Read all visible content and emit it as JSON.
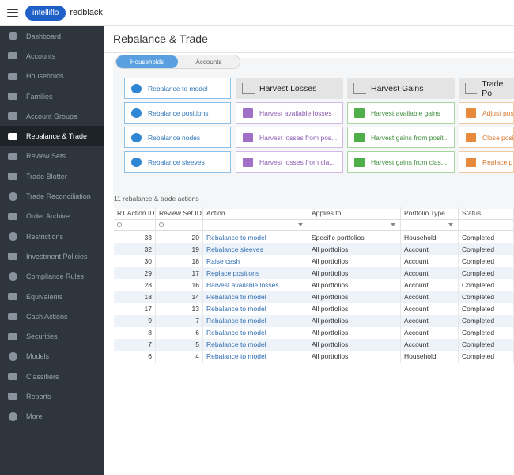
{
  "header": {
    "brand_left": "intelliflo",
    "brand_right": "redblack"
  },
  "sidebar": {
    "items": [
      {
        "label": "Dashboard",
        "icon": "dashboard-icon"
      },
      {
        "label": "Accounts",
        "icon": "accounts-icon"
      },
      {
        "label": "Households",
        "icon": "households-icon"
      },
      {
        "label": "Families",
        "icon": "families-icon"
      },
      {
        "label": "Account Groups",
        "icon": "account-groups-icon"
      },
      {
        "label": "Rebalance & Trade",
        "icon": "calculator-icon"
      },
      {
        "label": "Review Sets",
        "icon": "review-sets-icon"
      },
      {
        "label": "Trade Blotter",
        "icon": "trade-blotter-icon"
      },
      {
        "label": "Trade Reconciliation",
        "icon": "check-circle-icon"
      },
      {
        "label": "Order Archive",
        "icon": "archive-icon"
      },
      {
        "label": "Restrictions",
        "icon": "restriction-icon"
      },
      {
        "label": "Investment Policies",
        "icon": "policy-icon"
      },
      {
        "label": "Compliance Rules",
        "icon": "compliance-icon"
      },
      {
        "label": "Equivalents",
        "icon": "equivalents-icon"
      },
      {
        "label": "Cash Actions",
        "icon": "cash-icon"
      },
      {
        "label": "Securities",
        "icon": "securities-icon"
      },
      {
        "label": "Models",
        "icon": "pie-chart-icon"
      },
      {
        "label": "Classifiers",
        "icon": "grid-icon"
      },
      {
        "label": "Reports",
        "icon": "reports-icon"
      },
      {
        "label": "More",
        "icon": "more-icon"
      }
    ]
  },
  "page": {
    "title": "Rebalance & Trade",
    "tabs": [
      "Households",
      "Accounts"
    ],
    "columns": [
      {
        "head": "",
        "cards": [
          "Rebalance to model",
          "Rebalance positions",
          "Rebalance nodes",
          "Rebalance sleeves"
        ],
        "color": "blue"
      },
      {
        "head": "Harvest Losses",
        "cards": [
          "Harvest available losses",
          "Harvest losses from pos...",
          "Harvest losses from cla..."
        ],
        "color": "purple"
      },
      {
        "head": "Harvest Gains",
        "cards": [
          "Harvest available gains",
          "Harvest gains from posit...",
          "Harvest gains from clas..."
        ],
        "color": "green"
      },
      {
        "head": "Trade Po",
        "cards": [
          "Adjust pos",
          "Close posi",
          "Replace p"
        ],
        "color": "orange"
      }
    ],
    "count_label": "11 rebalance & trade actions"
  },
  "table": {
    "headers": [
      "RT Action ID",
      "Review Set ID",
      "Action",
      "Applies to",
      "Portfolio Type",
      "Status"
    ],
    "rows": [
      [
        "33",
        "20",
        "Rebalance to model",
        "Specific portfolios",
        "Household",
        "Completed"
      ],
      [
        "32",
        "19",
        "Rebalance sleeves",
        "All portfolios",
        "Account",
        "Completed"
      ],
      [
        "30",
        "18",
        "Raise cash",
        "All portfolios",
        "Account",
        "Completed"
      ],
      [
        "29",
        "17",
        "Replace positions",
        "All portfolios",
        "Account",
        "Completed"
      ],
      [
        "28",
        "16",
        "Harvest available losses",
        "All portfolios",
        "Account",
        "Completed"
      ],
      [
        "18",
        "14",
        "Rebalance to model",
        "All portfolios",
        "Account",
        "Completed"
      ],
      [
        "17",
        "13",
        "Rebalance to model",
        "All portfolios",
        "Account",
        "Completed"
      ],
      [
        "9",
        "7",
        "Rebalance to model",
        "All portfolios",
        "Account",
        "Completed"
      ],
      [
        "8",
        "6",
        "Rebalance to model",
        "All portfolios",
        "Account",
        "Completed"
      ],
      [
        "7",
        "5",
        "Rebalance to model",
        "All portfolios",
        "Account",
        "Completed"
      ],
      [
        "6",
        "4",
        "Rebalance to model",
        "All portfolios",
        "Household",
        "Completed"
      ]
    ]
  }
}
